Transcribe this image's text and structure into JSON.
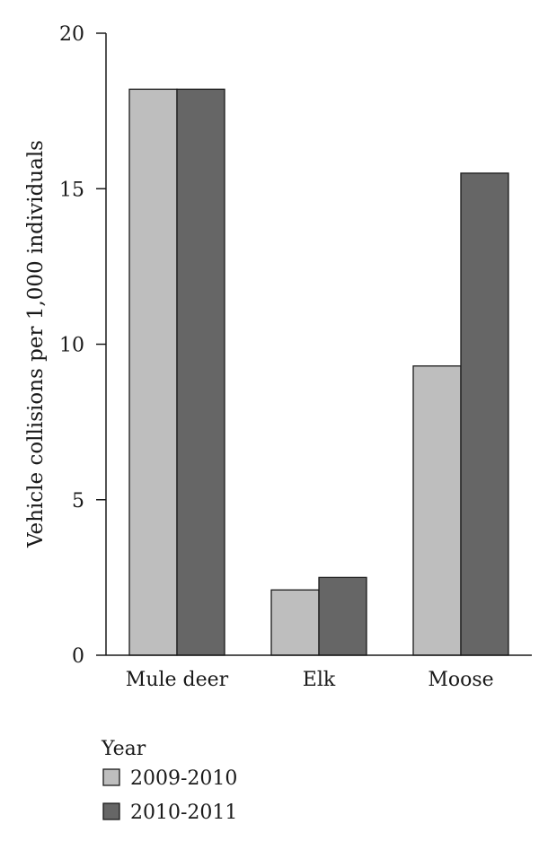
{
  "chart_data": {
    "type": "bar",
    "title": "",
    "xlabel": "",
    "ylabel": "Vehicle collisions per 1,000 individuals",
    "ylim": [
      0,
      20
    ],
    "yticks": [
      0,
      5,
      10,
      15,
      20
    ],
    "categories": [
      "Mule deer",
      "Elk",
      "Moose"
    ],
    "series": [
      {
        "name": "2009-2010",
        "values": [
          18.2,
          2.1,
          9.3
        ],
        "color": "#bebebe"
      },
      {
        "name": "2010-2011",
        "values": [
          18.2,
          2.5,
          15.5
        ],
        "color": "#666666"
      }
    ],
    "legend": {
      "title": "Year",
      "position": "bottom-left"
    },
    "grid": false
  }
}
